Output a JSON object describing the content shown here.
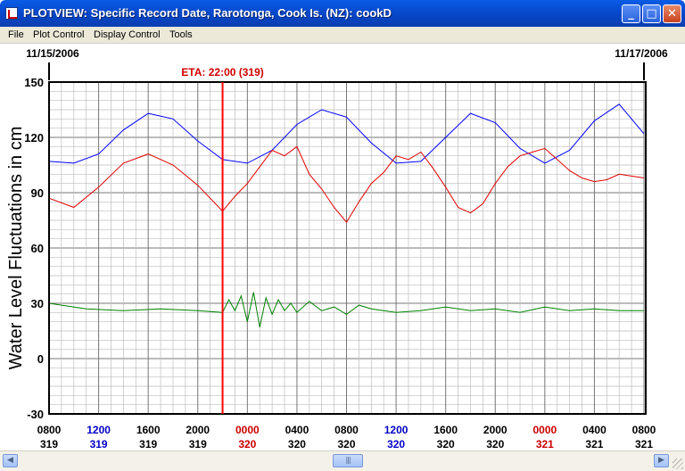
{
  "window": {
    "title": "PLOTVIEW: Specific Record Date, Rarotonga, Cook Is. (NZ): cookD",
    "buttons": {
      "minimize": "_",
      "maximize": "□",
      "close": "✕"
    }
  },
  "menu": {
    "items": [
      {
        "label": "File"
      },
      {
        "label": "Plot Control"
      },
      {
        "label": "Display Control"
      },
      {
        "label": "Tools"
      }
    ]
  },
  "scrollbar": {
    "left_arrow": "◀",
    "right_arrow": "▶",
    "thumb_grip": "|||"
  },
  "chart_data": {
    "type": "line",
    "ylabel": "Water Level Fluctuations in cm",
    "ylim": [
      -30,
      150
    ],
    "yticks": [
      "150",
      "120",
      "90",
      "60",
      "30",
      "0",
      "-30"
    ],
    "date_start": "11/15/2006",
    "date_end": "11/17/2006",
    "eta_label": "ETA: 22:00 (319)",
    "eta_hour": 14,
    "xlim_hours": [
      0,
      48
    ],
    "grid": true,
    "colors": {
      "eta": "#ff0000",
      "predicted": "#0000ff",
      "observed": "#e00000",
      "residual": "#008000",
      "tick_black": "#000000",
      "tick_blue": "#0000c8",
      "tick_red": "#cc0000"
    },
    "x_ticks": [
      {
        "time": "0800",
        "day": "319",
        "color": "black"
      },
      {
        "time": "1200",
        "day": "319",
        "color": "blue"
      },
      {
        "time": "1600",
        "day": "319",
        "color": "black"
      },
      {
        "time": "2000",
        "day": "319",
        "color": "black"
      },
      {
        "time": "0000",
        "day": "320",
        "color": "red"
      },
      {
        "time": "0400",
        "day": "320",
        "color": "black"
      },
      {
        "time": "0800",
        "day": "320",
        "color": "black"
      },
      {
        "time": "1200",
        "day": "320",
        "color": "blue"
      },
      {
        "time": "1600",
        "day": "320",
        "color": "black"
      },
      {
        "time": "2000",
        "day": "320",
        "color": "black"
      },
      {
        "time": "0000",
        "day": "321",
        "color": "red"
      },
      {
        "time": "0400",
        "day": "321",
        "color": "black"
      },
      {
        "time": "0800",
        "day": "321",
        "color": "black"
      }
    ],
    "series": [
      {
        "color": "#0000ff",
        "x": [
          0,
          2,
          4,
          6,
          8,
          10,
          12,
          14,
          16,
          18,
          20,
          22,
          24,
          26,
          28,
          30,
          32,
          34,
          36,
          38,
          40,
          42,
          44,
          46,
          48
        ],
        "y": [
          107,
          106,
          111,
          124,
          133,
          130,
          118,
          108,
          106,
          113,
          127,
          135,
          131,
          117,
          106,
          107,
          120,
          133,
          128,
          114,
          106,
          113,
          129,
          138,
          122
        ]
      },
      {
        "color": "#e00000",
        "x": [
          0,
          2,
          4,
          6,
          8,
          10,
          12,
          14,
          15,
          16,
          17,
          18,
          19,
          20,
          21,
          22,
          23,
          24,
          25,
          26,
          27,
          28,
          29,
          30,
          31,
          32,
          33,
          34,
          35,
          36,
          37,
          38,
          39,
          40,
          41,
          42,
          43,
          44,
          45,
          46,
          47,
          48
        ],
        "y": [
          87,
          82,
          93,
          106,
          111,
          105,
          94,
          80,
          88,
          95,
          104,
          113,
          110,
          115,
          100,
          92,
          82,
          74,
          85,
          95,
          101,
          110,
          108,
          112,
          103,
          93,
          82,
          79,
          84,
          95,
          104,
          110,
          112,
          114,
          108,
          102,
          98,
          96,
          97,
          100,
          99,
          98
        ]
      },
      {
        "color": "#008000",
        "x": [
          0,
          3,
          6,
          9,
          12,
          14,
          14.5,
          15,
          15.5,
          16,
          16.5,
          17,
          17.5,
          18,
          18.5,
          19,
          19.5,
          20,
          21,
          22,
          23,
          24,
          25,
          26,
          28,
          30,
          32,
          34,
          36,
          38,
          40,
          42,
          44,
          46,
          48
        ],
        "y": [
          30,
          27,
          26,
          27,
          26,
          25,
          32,
          26,
          34,
          20,
          36,
          17,
          33,
          24,
          32,
          26,
          30,
          25,
          31,
          26,
          28,
          24,
          29,
          27,
          25,
          26,
          28,
          26,
          27,
          25,
          28,
          26,
          27,
          26,
          26
        ]
      }
    ]
  }
}
